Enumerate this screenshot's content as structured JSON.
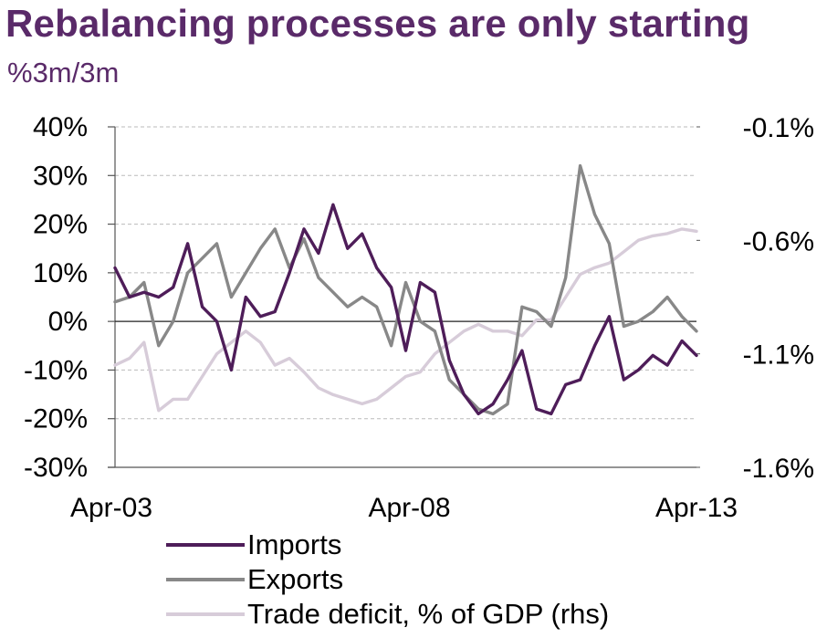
{
  "header": {
    "title": "Rebalancing processes are only starting",
    "subtitle": "%3m/3m"
  },
  "colors": {
    "title": "#5a2a69",
    "imports": "#4e1d59",
    "exports": "#888888",
    "trade_deficit": "#d7ccd9",
    "gridline": "#bbbbbb"
  },
  "chart_data": {
    "type": "line",
    "title": "Rebalancing processes are only starting",
    "ylabel": "%3m/3m",
    "x_ticks": [
      "Apr-03",
      "Apr-08",
      "Apr-13"
    ],
    "y_left": {
      "range": [
        -30,
        40
      ],
      "ticks": [
        -30,
        -20,
        -10,
        0,
        10,
        20,
        30,
        40
      ],
      "tick_labels": [
        "-30%",
        "-20%",
        "-10%",
        "0%",
        "10%",
        "20%",
        "30%",
        "40%"
      ]
    },
    "y_right": {
      "range": [
        -1.6,
        -0.1
      ],
      "ticks": [
        -1.6,
        -1.1,
        -0.6,
        -0.1
      ],
      "tick_labels": [
        "-1.6%",
        "-1.1%",
        "-0.6%",
        "-0.1%"
      ]
    },
    "grid": "horizontal dashed",
    "legend_position": "bottom",
    "series": [
      {
        "name": "Imports",
        "axis": "left",
        "x": [
          2003.25,
          2003.5,
          2003.75,
          2004.0,
          2004.25,
          2004.5,
          2004.75,
          2005.0,
          2005.25,
          2005.5,
          2005.75,
          2006.0,
          2006.25,
          2006.5,
          2006.75,
          2007.0,
          2007.25,
          2007.5,
          2007.75,
          2008.0,
          2008.25,
          2008.5,
          2008.75,
          2009.0,
          2009.25,
          2009.5,
          2009.75,
          2010.0,
          2010.25,
          2010.5,
          2010.75,
          2011.0,
          2011.25,
          2011.5,
          2011.75,
          2012.0,
          2012.25,
          2012.5,
          2012.75,
          2013.0,
          2013.25
        ],
        "values": [
          11,
          5,
          6,
          5,
          7,
          16,
          3,
          0,
          -10,
          5,
          1,
          2,
          10,
          19,
          14,
          24,
          15,
          18,
          11,
          7,
          -6,
          8,
          6,
          -8,
          -15,
          -19,
          -17,
          -12,
          -6,
          -18,
          -19,
          -13,
          -12,
          -5,
          1,
          -12,
          -10,
          -7,
          -9,
          -4,
          -7
        ]
      },
      {
        "name": "Exports",
        "axis": "left",
        "x": [
          2003.25,
          2003.5,
          2003.75,
          2004.0,
          2004.25,
          2004.5,
          2004.75,
          2005.0,
          2005.25,
          2005.5,
          2005.75,
          2006.0,
          2006.25,
          2006.5,
          2006.75,
          2007.0,
          2007.25,
          2007.5,
          2007.75,
          2008.0,
          2008.25,
          2008.5,
          2008.75,
          2009.0,
          2009.25,
          2009.5,
          2009.75,
          2010.0,
          2010.25,
          2010.5,
          2010.75,
          2011.0,
          2011.25,
          2011.5,
          2011.75,
          2012.0,
          2012.25,
          2012.5,
          2012.75,
          2013.0,
          2013.25
        ],
        "values": [
          4,
          5,
          8,
          -5,
          0,
          10,
          13,
          16,
          5,
          10,
          15,
          19,
          11,
          17,
          9,
          6,
          3,
          5,
          3,
          -5,
          8,
          0,
          -2,
          -12,
          -15,
          -18,
          -19,
          -17,
          3,
          2,
          -1,
          9,
          32,
          22,
          16,
          -1,
          0,
          2,
          5,
          1,
          -2
        ]
      },
      {
        "name": "Trade deficit, % of GDP (rhs)",
        "axis": "right",
        "x": [
          2003.25,
          2003.5,
          2003.75,
          2004.0,
          2004.25,
          2004.5,
          2004.75,
          2005.0,
          2005.25,
          2005.5,
          2005.75,
          2006.0,
          2006.25,
          2006.5,
          2006.75,
          2007.0,
          2007.25,
          2007.5,
          2007.75,
          2008.0,
          2008.25,
          2008.5,
          2008.75,
          2009.0,
          2009.25,
          2009.5,
          2009.75,
          2010.0,
          2010.25,
          2010.5,
          2010.75,
          2011.0,
          2011.25,
          2011.5,
          2011.75,
          2012.0,
          2012.25,
          2012.5,
          2012.75,
          2013.0,
          2013.25
        ],
        "values": [
          -1.15,
          -1.12,
          -1.05,
          -1.35,
          -1.3,
          -1.3,
          -1.2,
          -1.1,
          -1.05,
          -1.0,
          -1.05,
          -1.15,
          -1.12,
          -1.18,
          -1.25,
          -1.28,
          -1.3,
          -1.32,
          -1.3,
          -1.25,
          -1.2,
          -1.18,
          -1.1,
          -1.05,
          -1.0,
          -0.97,
          -1.0,
          -1.0,
          -1.02,
          -0.95,
          -0.95,
          -0.85,
          -0.75,
          -0.72,
          -0.7,
          -0.65,
          -0.6,
          -0.58,
          -0.57,
          -0.55,
          -0.56
        ]
      }
    ]
  }
}
